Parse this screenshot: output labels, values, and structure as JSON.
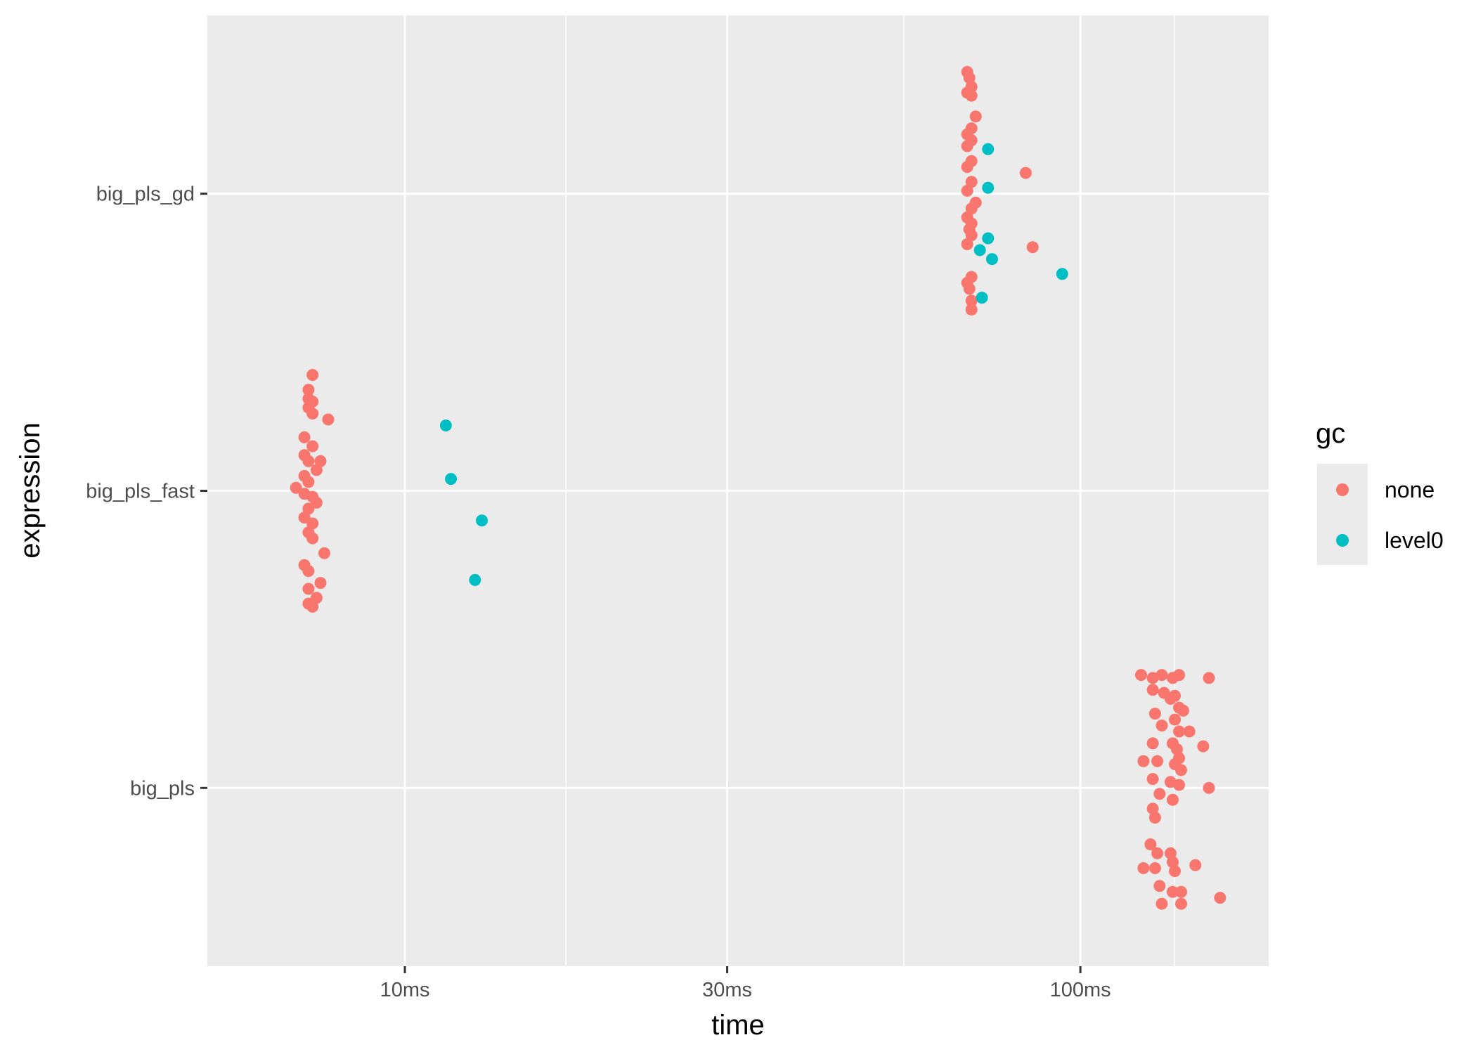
{
  "chart_data": {
    "type": "scatter",
    "xlabel": "time",
    "ylabel": "expression",
    "x_scale": "log10",
    "x_unit": "ms",
    "xlim": [
      5.1,
      190
    ],
    "x_ticks": [
      10,
      30,
      100
    ],
    "x_tick_labels": [
      "10ms",
      "30ms",
      "100ms"
    ],
    "categories": [
      "big_pls",
      "big_pls_fast",
      "big_pls_gd"
    ],
    "grid": true,
    "legend": {
      "title": "gc",
      "position": "right"
    },
    "series": [
      {
        "name": "none",
        "color": "#F8766D",
        "points": [
          {
            "y": "big_pls_fast",
            "x": 7.3,
            "j": 0.39
          },
          {
            "y": "big_pls_fast",
            "x": 7.2,
            "j": 0.34
          },
          {
            "y": "big_pls_fast",
            "x": 7.2,
            "j": 0.31
          },
          {
            "y": "big_pls_fast",
            "x": 7.3,
            "j": 0.3
          },
          {
            "y": "big_pls_fast",
            "x": 7.2,
            "j": 0.28
          },
          {
            "y": "big_pls_fast",
            "x": 7.3,
            "j": 0.26
          },
          {
            "y": "big_pls_fast",
            "x": 7.7,
            "j": 0.24
          },
          {
            "y": "big_pls_fast",
            "x": 7.1,
            "j": 0.18
          },
          {
            "y": "big_pls_fast",
            "x": 7.3,
            "j": 0.15
          },
          {
            "y": "big_pls_fast",
            "x": 7.1,
            "j": 0.12
          },
          {
            "y": "big_pls_fast",
            "x": 7.2,
            "j": 0.1
          },
          {
            "y": "big_pls_fast",
            "x": 7.5,
            "j": 0.1
          },
          {
            "y": "big_pls_fast",
            "x": 7.4,
            "j": 0.07
          },
          {
            "y": "big_pls_fast",
            "x": 7.1,
            "j": 0.05
          },
          {
            "y": "big_pls_fast",
            "x": 7.2,
            "j": 0.03
          },
          {
            "y": "big_pls_fast",
            "x": 6.9,
            "j": 0.01
          },
          {
            "y": "big_pls_fast",
            "x": 7.1,
            "j": -0.01
          },
          {
            "y": "big_pls_fast",
            "x": 7.3,
            "j": -0.02
          },
          {
            "y": "big_pls_fast",
            "x": 7.4,
            "j": -0.04
          },
          {
            "y": "big_pls_fast",
            "x": 7.2,
            "j": -0.06
          },
          {
            "y": "big_pls_fast",
            "x": 7.1,
            "j": -0.09
          },
          {
            "y": "big_pls_fast",
            "x": 7.3,
            "j": -0.11
          },
          {
            "y": "big_pls_fast",
            "x": 7.2,
            "j": -0.14
          },
          {
            "y": "big_pls_fast",
            "x": 7.3,
            "j": -0.16
          },
          {
            "y": "big_pls_fast",
            "x": 7.6,
            "j": -0.21
          },
          {
            "y": "big_pls_fast",
            "x": 7.1,
            "j": -0.25
          },
          {
            "y": "big_pls_fast",
            "x": 7.2,
            "j": -0.27
          },
          {
            "y": "big_pls_fast",
            "x": 7.5,
            "j": -0.31
          },
          {
            "y": "big_pls_fast",
            "x": 7.2,
            "j": -0.33
          },
          {
            "y": "big_pls_fast",
            "x": 7.4,
            "j": -0.36
          },
          {
            "y": "big_pls_fast",
            "x": 7.2,
            "j": -0.38
          },
          {
            "y": "big_pls_fast",
            "x": 7.3,
            "j": -0.39
          },
          {
            "y": "big_pls_gd",
            "x": 68,
            "j": 0.41
          },
          {
            "y": "big_pls_gd",
            "x": 68.5,
            "j": 0.39
          },
          {
            "y": "big_pls_gd",
            "x": 69,
            "j": 0.36
          },
          {
            "y": "big_pls_gd",
            "x": 68,
            "j": 0.34
          },
          {
            "y": "big_pls_gd",
            "x": 69,
            "j": 0.33
          },
          {
            "y": "big_pls_gd",
            "x": 70,
            "j": 0.26
          },
          {
            "y": "big_pls_gd",
            "x": 69,
            "j": 0.22
          },
          {
            "y": "big_pls_gd",
            "x": 68,
            "j": 0.2
          },
          {
            "y": "big_pls_gd",
            "x": 69,
            "j": 0.18
          },
          {
            "y": "big_pls_gd",
            "x": 68,
            "j": 0.16
          },
          {
            "y": "big_pls_gd",
            "x": 69,
            "j": 0.11
          },
          {
            "y": "big_pls_gd",
            "x": 68,
            "j": 0.09
          },
          {
            "y": "big_pls_gd",
            "x": 83,
            "j": 0.07
          },
          {
            "y": "big_pls_gd",
            "x": 69,
            "j": 0.04
          },
          {
            "y": "big_pls_gd",
            "x": 68,
            "j": 0.01
          },
          {
            "y": "big_pls_gd",
            "x": 70,
            "j": -0.03
          },
          {
            "y": "big_pls_gd",
            "x": 69,
            "j": -0.05
          },
          {
            "y": "big_pls_gd",
            "x": 68,
            "j": -0.08
          },
          {
            "y": "big_pls_gd",
            "x": 69,
            "j": -0.1
          },
          {
            "y": "big_pls_gd",
            "x": 68.5,
            "j": -0.12
          },
          {
            "y": "big_pls_gd",
            "x": 69,
            "j": -0.14
          },
          {
            "y": "big_pls_gd",
            "x": 68,
            "j": -0.17
          },
          {
            "y": "big_pls_gd",
            "x": 85,
            "j": -0.18
          },
          {
            "y": "big_pls_gd",
            "x": 69,
            "j": -0.28
          },
          {
            "y": "big_pls_gd",
            "x": 68,
            "j": -0.3
          },
          {
            "y": "big_pls_gd",
            "x": 68.5,
            "j": -0.32
          },
          {
            "y": "big_pls_gd",
            "x": 69,
            "j": -0.36
          },
          {
            "y": "big_pls_gd",
            "x": 69,
            "j": -0.39
          },
          {
            "y": "big_pls",
            "x": 123,
            "j": 0.38
          },
          {
            "y": "big_pls",
            "x": 128,
            "j": 0.37
          },
          {
            "y": "big_pls",
            "x": 132,
            "j": 0.38
          },
          {
            "y": "big_pls",
            "x": 137,
            "j": 0.37
          },
          {
            "y": "big_pls",
            "x": 140,
            "j": 0.38
          },
          {
            "y": "big_pls",
            "x": 155,
            "j": 0.37
          },
          {
            "y": "big_pls",
            "x": 128,
            "j": 0.33
          },
          {
            "y": "big_pls",
            "x": 133,
            "j": 0.32
          },
          {
            "y": "big_pls",
            "x": 138,
            "j": 0.31
          },
          {
            "y": "big_pls",
            "x": 136,
            "j": 0.3
          },
          {
            "y": "big_pls",
            "x": 140,
            "j": 0.27
          },
          {
            "y": "big_pls",
            "x": 129,
            "j": 0.25
          },
          {
            "y": "big_pls",
            "x": 142,
            "j": 0.26
          },
          {
            "y": "big_pls",
            "x": 138,
            "j": 0.23
          },
          {
            "y": "big_pls",
            "x": 132,
            "j": 0.21
          },
          {
            "y": "big_pls",
            "x": 140,
            "j": 0.19
          },
          {
            "y": "big_pls",
            "x": 145,
            "j": 0.19
          },
          {
            "y": "big_pls",
            "x": 128,
            "j": 0.15
          },
          {
            "y": "big_pls",
            "x": 137,
            "j": 0.15
          },
          {
            "y": "big_pls",
            "x": 152,
            "j": 0.14
          },
          {
            "y": "big_pls",
            "x": 139,
            "j": 0.13
          },
          {
            "y": "big_pls",
            "x": 140,
            "j": 0.1
          },
          {
            "y": "big_pls",
            "x": 124,
            "j": 0.09
          },
          {
            "y": "big_pls",
            "x": 130,
            "j": 0.09
          },
          {
            "y": "big_pls",
            "x": 138,
            "j": 0.08
          },
          {
            "y": "big_pls",
            "x": 141,
            "j": 0.06
          },
          {
            "y": "big_pls",
            "x": 128,
            "j": 0.03
          },
          {
            "y": "big_pls",
            "x": 136,
            "j": 0.02
          },
          {
            "y": "big_pls",
            "x": 140,
            "j": 0.01
          },
          {
            "y": "big_pls",
            "x": 155,
            "j": 0.0
          },
          {
            "y": "big_pls",
            "x": 131,
            "j": -0.02
          },
          {
            "y": "big_pls",
            "x": 137,
            "j": -0.04
          },
          {
            "y": "big_pls",
            "x": 128,
            "j": -0.07
          },
          {
            "y": "big_pls",
            "x": 129,
            "j": -0.1
          },
          {
            "y": "big_pls",
            "x": 127,
            "j": -0.19
          },
          {
            "y": "big_pls",
            "x": 130,
            "j": -0.22
          },
          {
            "y": "big_pls",
            "x": 136,
            "j": -0.22
          },
          {
            "y": "big_pls",
            "x": 137,
            "j": -0.25
          },
          {
            "y": "big_pls",
            "x": 124,
            "j": -0.27
          },
          {
            "y": "big_pls",
            "x": 129,
            "j": -0.27
          },
          {
            "y": "big_pls",
            "x": 138,
            "j": -0.28
          },
          {
            "y": "big_pls",
            "x": 148,
            "j": -0.26
          },
          {
            "y": "big_pls",
            "x": 131,
            "j": -0.33
          },
          {
            "y": "big_pls",
            "x": 137,
            "j": -0.35
          },
          {
            "y": "big_pls",
            "x": 141,
            "j": -0.35
          },
          {
            "y": "big_pls",
            "x": 161,
            "j": -0.37
          },
          {
            "y": "big_pls",
            "x": 132,
            "j": -0.39
          },
          {
            "y": "big_pls",
            "x": 141,
            "j": -0.39
          }
        ]
      },
      {
        "name": "level0",
        "color": "#00BFC4",
        "points": [
          {
            "y": "big_pls_fast",
            "x": 11.5,
            "j": 0.22
          },
          {
            "y": "big_pls_fast",
            "x": 11.7,
            "j": 0.04
          },
          {
            "y": "big_pls_fast",
            "x": 13.0,
            "j": -0.1
          },
          {
            "y": "big_pls_fast",
            "x": 12.7,
            "j": -0.3
          },
          {
            "y": "big_pls_gd",
            "x": 73,
            "j": 0.15
          },
          {
            "y": "big_pls_gd",
            "x": 73,
            "j": 0.02
          },
          {
            "y": "big_pls_gd",
            "x": 73,
            "j": -0.15
          },
          {
            "y": "big_pls_gd",
            "x": 71,
            "j": -0.19
          },
          {
            "y": "big_pls_gd",
            "x": 74,
            "j": -0.22
          },
          {
            "y": "big_pls_gd",
            "x": 94,
            "j": -0.27
          },
          {
            "y": "big_pls_gd",
            "x": 71.5,
            "j": -0.35
          }
        ]
      }
    ]
  }
}
